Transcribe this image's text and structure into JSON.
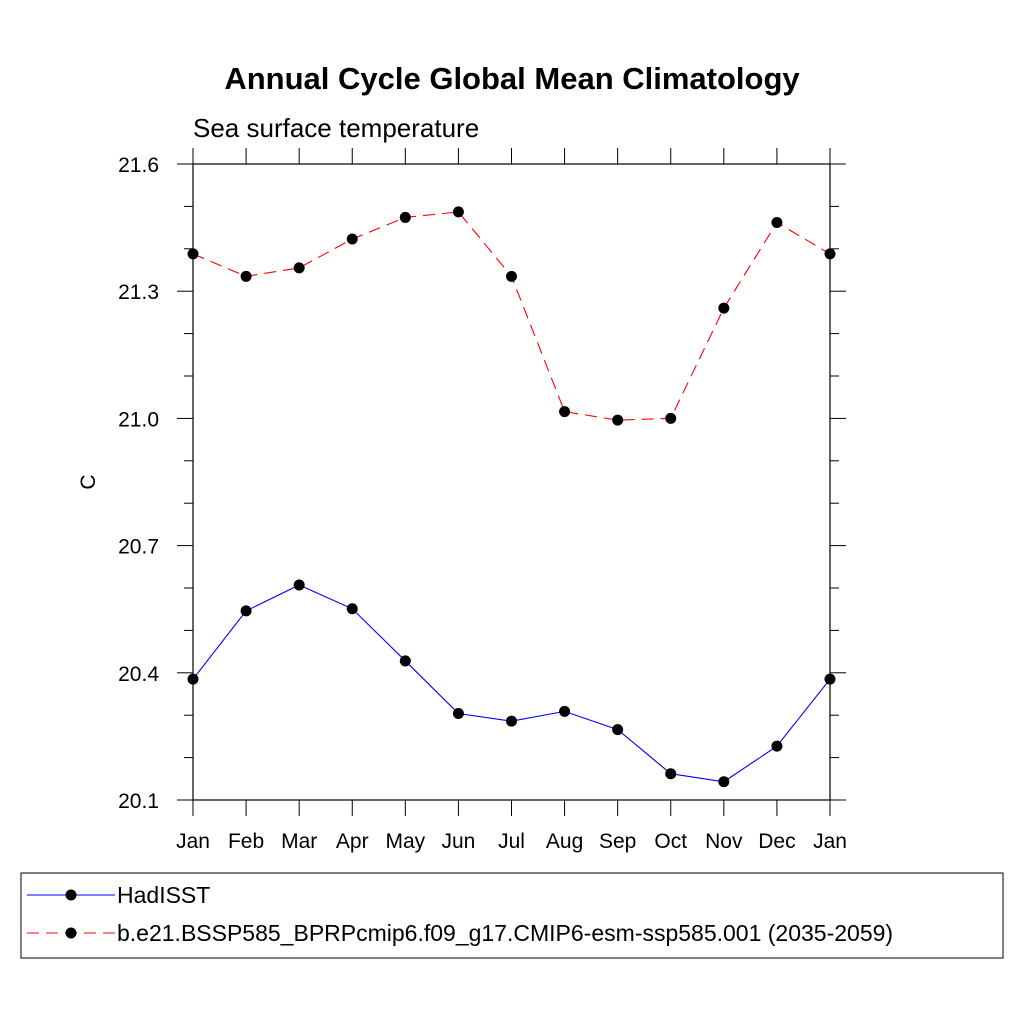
{
  "chart_data": {
    "type": "line",
    "title": "Annual Cycle Global Mean Climatology",
    "subtitle": "Sea surface temperature",
    "xlabel": "",
    "ylabel": "C",
    "categories": [
      "Jan",
      "Feb",
      "Mar",
      "Apr",
      "May",
      "Jun",
      "Jul",
      "Aug",
      "Sep",
      "Oct",
      "Nov",
      "Dec",
      "Jan"
    ],
    "ylim": [
      20.1,
      21.6
    ],
    "yticks": [
      "20.1",
      "20.4",
      "20.7",
      "21.0",
      "21.3",
      "21.6"
    ],
    "series": [
      {
        "name": "HadISST",
        "color": "#0000ff",
        "dash": "solid",
        "values": [
          20.385,
          20.546,
          20.607,
          20.551,
          20.428,
          20.304,
          20.286,
          20.309,
          20.266,
          20.162,
          20.143,
          20.227,
          20.385
        ]
      },
      {
        "name": "b.e21.BSSP585_BPRPcmip6.f09_g17.CMIP6-esm-ssp585.001 (2035-2059)",
        "color": "#ff0000",
        "dash": "dashed",
        "values": [
          21.388,
          21.335,
          21.355,
          21.423,
          21.474,
          21.487,
          21.335,
          21.016,
          20.996,
          21.0,
          21.26,
          21.462,
          21.388
        ]
      }
    ]
  }
}
